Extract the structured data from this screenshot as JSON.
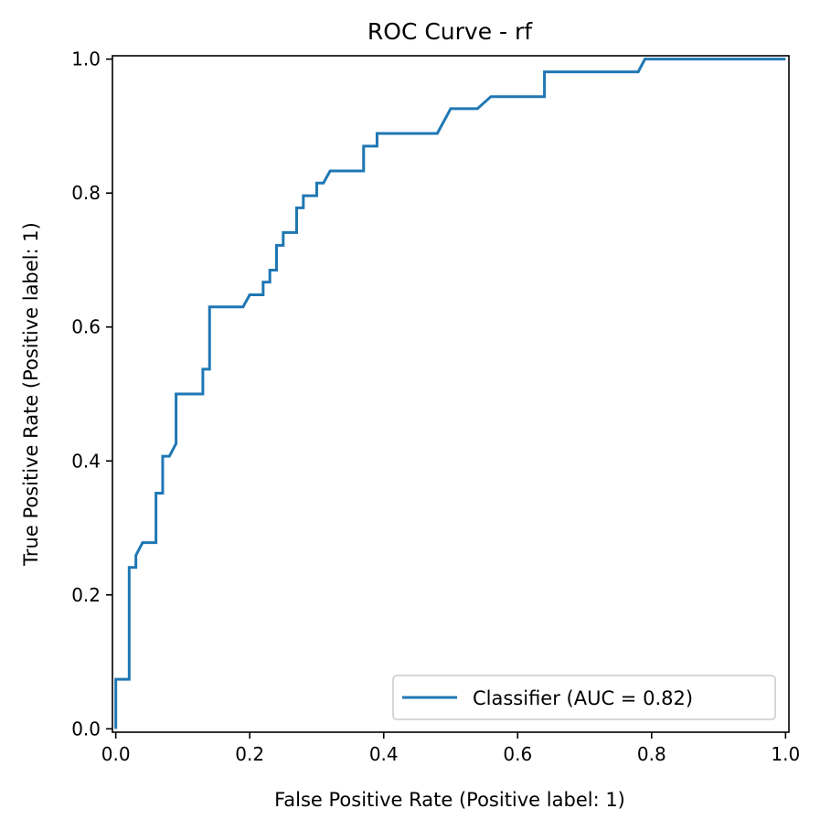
{
  "chart_data": {
    "type": "line",
    "title": "ROC Curve - rf",
    "xlabel": "False Positive Rate (Positive label: 1)",
    "ylabel": "True Positive Rate (Positive label: 1)",
    "xlim": [
      -0.005,
      1.005
    ],
    "ylim": [
      -0.005,
      1.005
    ],
    "grid": false,
    "legend_position": "lower-right",
    "x_ticks": [
      0.0,
      0.2,
      0.4,
      0.6,
      0.8,
      1.0
    ],
    "x_tick_labels": [
      "0.0",
      "0.2",
      "0.4",
      "0.6",
      "0.8",
      "1.0"
    ],
    "y_ticks": [
      0.0,
      0.2,
      0.4,
      0.6,
      0.8,
      1.0
    ],
    "y_tick_labels": [
      "0.0",
      "0.2",
      "0.4",
      "0.6",
      "0.8",
      "1.0"
    ],
    "series": [
      {
        "name": "Classifier (AUC = 0.82)",
        "color": "#1f77b4",
        "x": [
          0.0,
          0.0,
          0.02,
          0.02,
          0.03,
          0.03,
          0.04,
          0.06,
          0.06,
          0.07,
          0.07,
          0.08,
          0.09,
          0.09,
          0.13,
          0.13,
          0.14,
          0.14,
          0.19,
          0.2,
          0.22,
          0.22,
          0.23,
          0.23,
          0.24,
          0.24,
          0.25,
          0.25,
          0.27,
          0.27,
          0.28,
          0.28,
          0.3,
          0.3,
          0.31,
          0.32,
          0.37,
          0.37,
          0.39,
          0.39,
          0.48,
          0.5,
          0.54,
          0.56,
          0.64,
          0.64,
          0.78,
          0.79,
          1.0
        ],
        "y": [
          0.0,
          0.074,
          0.074,
          0.241,
          0.241,
          0.259,
          0.278,
          0.278,
          0.352,
          0.352,
          0.407,
          0.407,
          0.426,
          0.5,
          0.5,
          0.537,
          0.537,
          0.63,
          0.63,
          0.648,
          0.648,
          0.667,
          0.667,
          0.685,
          0.685,
          0.722,
          0.722,
          0.741,
          0.741,
          0.778,
          0.778,
          0.796,
          0.796,
          0.815,
          0.815,
          0.833,
          0.833,
          0.87,
          0.87,
          0.889,
          0.889,
          0.926,
          0.926,
          0.944,
          0.944,
          0.981,
          0.981,
          1.0,
          1.0
        ]
      }
    ]
  }
}
